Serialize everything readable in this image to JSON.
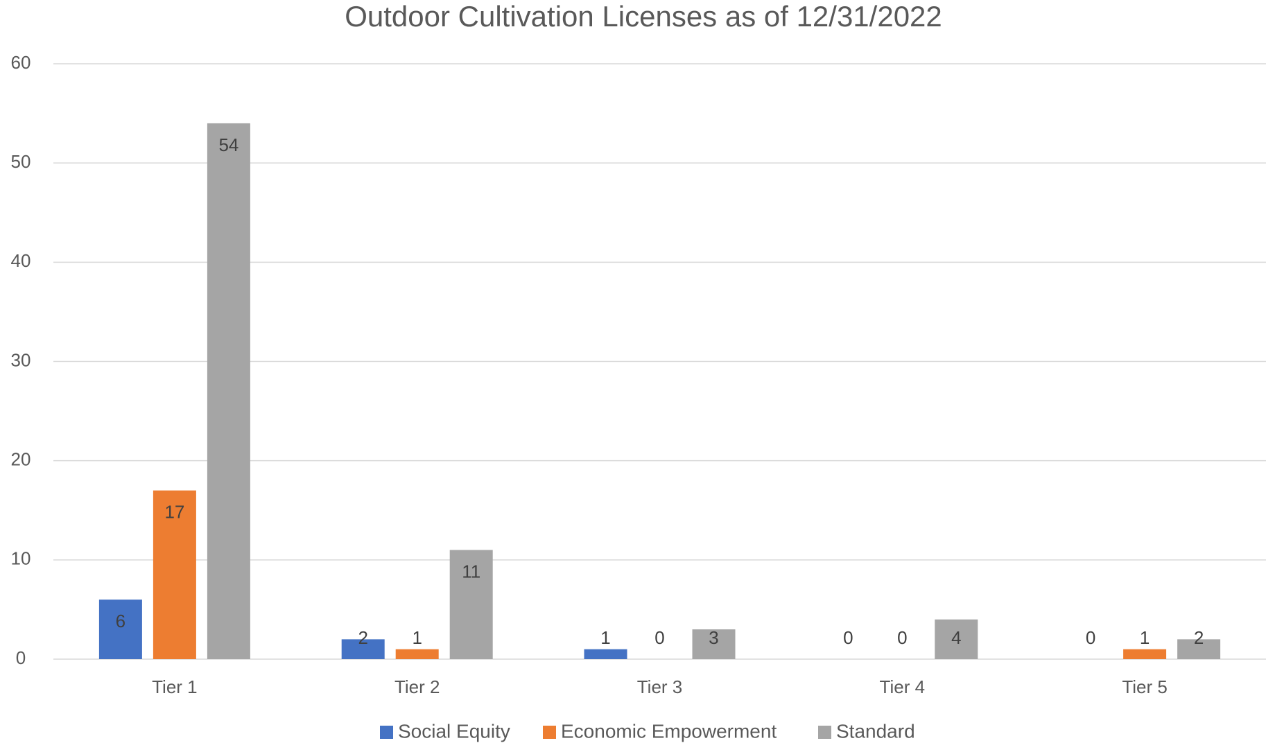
{
  "chart_data": {
    "type": "bar",
    "title": "Outdoor Cultivation Licenses as of 12/31/2022",
    "categories": [
      "Tier 1",
      "Tier 2",
      "Tier 3",
      "Tier 4",
      "Tier 5"
    ],
    "series": [
      {
        "name": "Social Equity",
        "color": "#4472c4",
        "values": [
          6,
          2,
          1,
          0,
          0
        ]
      },
      {
        "name": "Economic Empowerment",
        "color": "#ed7d31",
        "values": [
          17,
          1,
          0,
          0,
          1
        ]
      },
      {
        "name": "Standard",
        "color": "#a5a5a5",
        "values": [
          54,
          11,
          3,
          4,
          2
        ]
      }
    ],
    "ylim": [
      0,
      60
    ],
    "yticks": [
      0,
      10,
      20,
      30,
      40,
      50,
      60
    ],
    "grid": true,
    "legend": "bottom",
    "data_labels": true
  }
}
